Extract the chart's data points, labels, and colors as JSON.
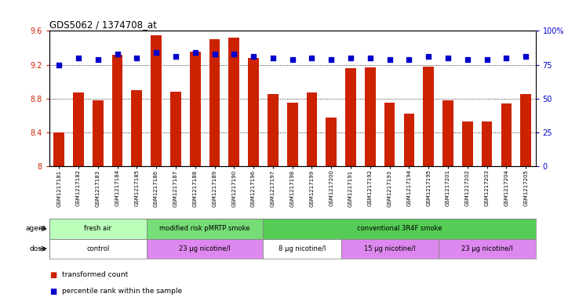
{
  "title": "GDS5062 / 1374708_at",
  "samples": [
    "GSM1217181",
    "GSM1217182",
    "GSM1217183",
    "GSM1217184",
    "GSM1217185",
    "GSM1217186",
    "GSM1217187",
    "GSM1217188",
    "GSM1217189",
    "GSM1217190",
    "GSM1217196",
    "GSM1217197",
    "GSM1217198",
    "GSM1217199",
    "GSM1217200",
    "GSM1217191",
    "GSM1217192",
    "GSM1217193",
    "GSM1217194",
    "GSM1217195",
    "GSM1217201",
    "GSM1217202",
    "GSM1217203",
    "GSM1217204",
    "GSM1217205"
  ],
  "bar_values": [
    8.4,
    8.87,
    8.78,
    9.32,
    8.9,
    9.55,
    8.88,
    9.35,
    9.5,
    9.52,
    9.28,
    8.85,
    8.75,
    8.87,
    8.58,
    9.16,
    9.17,
    8.75,
    8.62,
    9.18,
    8.78,
    8.53,
    8.53,
    8.74,
    8.85
  ],
  "percentile_values": [
    75,
    80,
    79,
    83,
    80,
    84,
    81,
    84,
    83,
    83,
    81,
    80,
    79,
    80,
    79,
    80,
    80,
    79,
    79,
    81,
    80,
    79,
    79,
    80,
    81
  ],
  "ylim_left": [
    8.0,
    9.6
  ],
  "ylim_right": [
    0,
    100
  ],
  "yticks_left": [
    8.0,
    8.4,
    8.8,
    9.2,
    9.6
  ],
  "yticks_right": [
    0,
    25,
    50,
    75,
    100
  ],
  "ytick_labels_right": [
    "0",
    "25",
    "50",
    "75",
    "100%"
  ],
  "bar_color": "#cc2200",
  "dot_color": "#0000cc",
  "agent_groups": [
    {
      "label": "fresh air",
      "start": 0,
      "end": 5,
      "color": "#bbffbb"
    },
    {
      "label": "modified risk pMRTP smoke",
      "start": 5,
      "end": 11,
      "color": "#77dd77"
    },
    {
      "label": "conventional 3R4F smoke",
      "start": 11,
      "end": 25,
      "color": "#55cc55"
    }
  ],
  "dose_groups": [
    {
      "label": "control",
      "start": 0,
      "end": 5,
      "color": "#ffffff"
    },
    {
      "label": "23 μg nicotine/l",
      "start": 5,
      "end": 11,
      "color": "#dd88ee"
    },
    {
      "label": "8 μg nicotine/l",
      "start": 11,
      "end": 15,
      "color": "#ffffff"
    },
    {
      "label": "15 μg nicotine/l",
      "start": 15,
      "end": 20,
      "color": "#dd88ee"
    },
    {
      "label": "23 μg nicotine/l",
      "start": 20,
      "end": 25,
      "color": "#dd88ee"
    }
  ],
  "legend_items": [
    {
      "label": "transformed count",
      "color": "#cc2200"
    },
    {
      "label": "percentile rank within the sample",
      "color": "#0000cc"
    }
  ],
  "bar_width": 0.55,
  "background_color": "#ffffff",
  "axis_label_color_left": "#cc2200",
  "axis_label_color_right": "#0000cc"
}
